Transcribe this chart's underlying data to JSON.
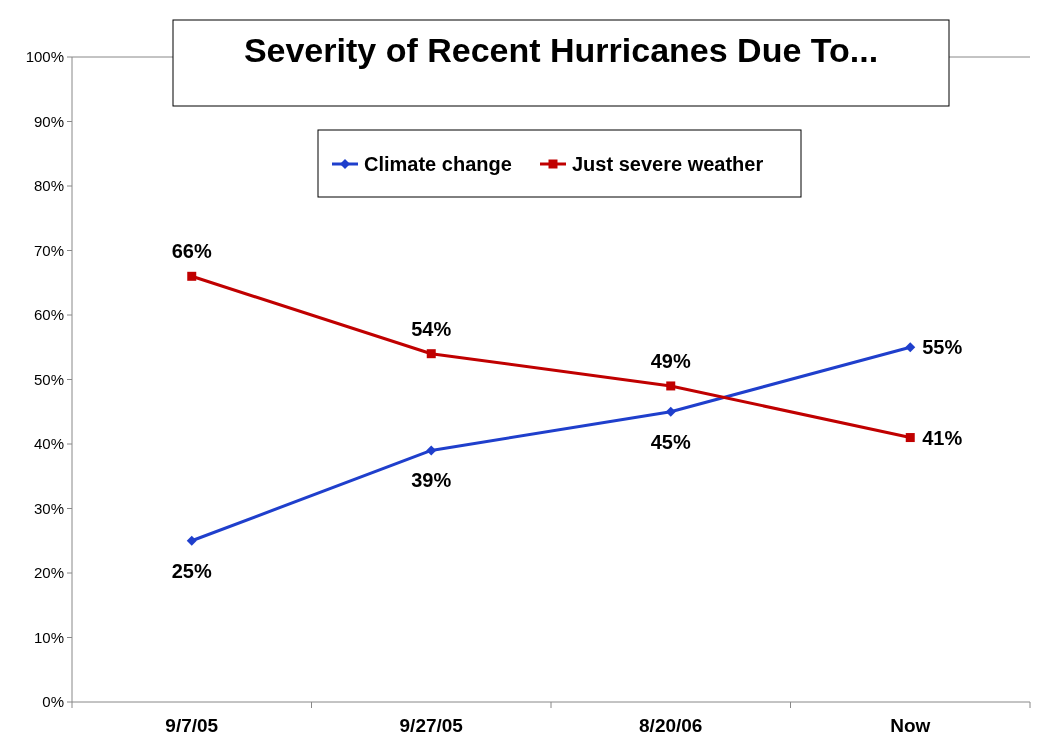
{
  "chart_data": {
    "type": "line",
    "title": "Severity of Recent Hurricanes Due To...",
    "categories": [
      "9/7/05",
      "9/27/05",
      "8/20/06",
      "Now"
    ],
    "series": [
      {
        "name": "Climate change",
        "color": "#1f3fcc",
        "values": [
          25,
          39,
          45,
          55
        ],
        "value_labels": [
          "25%",
          "39%",
          "45%",
          "55%"
        ],
        "marker": "diamond"
      },
      {
        "name": "Just severe weather",
        "color": "#c00000",
        "values": [
          66,
          54,
          49,
          41
        ],
        "value_labels": [
          "66%",
          "54%",
          "49%",
          "41%"
        ],
        "marker": "square"
      }
    ],
    "ylim": [
      0,
      100
    ],
    "yticks": [
      {
        "value": 0,
        "label": "0%"
      },
      {
        "value": 10,
        "label": "10%"
      },
      {
        "value": 20,
        "label": "20%"
      },
      {
        "value": 30,
        "label": "30%"
      },
      {
        "value": 40,
        "label": "40%"
      },
      {
        "value": 50,
        "label": "50%"
      },
      {
        "value": 60,
        "label": "60%"
      },
      {
        "value": 70,
        "label": "70%"
      },
      {
        "value": 80,
        "label": "80%"
      },
      {
        "value": 90,
        "label": "90%"
      },
      {
        "value": 100,
        "label": "100%"
      }
    ],
    "legend": "top",
    "grid": false,
    "line_style": "solid"
  }
}
